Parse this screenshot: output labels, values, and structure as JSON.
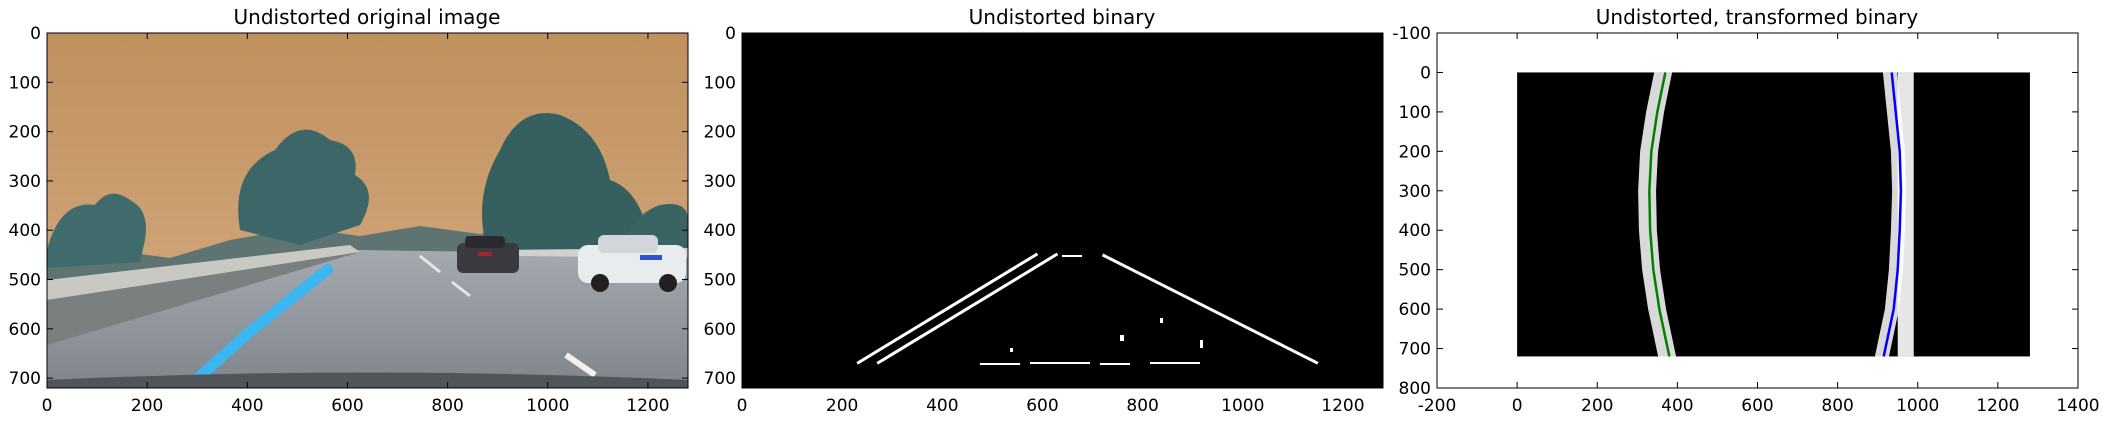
{
  "chart_data": [
    {
      "type": "image",
      "title": "Undistorted original image",
      "xlim": [
        0,
        1280
      ],
      "ylim": [
        720,
        0
      ],
      "xticks": [
        0,
        200,
        400,
        600,
        800,
        1000,
        1200
      ],
      "yticks": [
        0,
        100,
        200,
        300,
        400,
        500,
        600,
        700
      ],
      "content": {
        "sky_color": "#c99a6a",
        "road_color": "#9aa0a6",
        "highlighted_lane_color": "#3ab6f0",
        "highlighted_lane": [
          [
            280,
            720
          ],
          [
            400,
            610
          ],
          [
            560,
            480
          ]
        ]
      }
    },
    {
      "type": "image",
      "title": "Undistorted binary",
      "xlim": [
        0,
        1280
      ],
      "ylim": [
        720,
        0
      ],
      "xticks": [
        0,
        200,
        400,
        600,
        800,
        1000,
        1200
      ],
      "yticks": [
        0,
        100,
        200,
        300,
        400,
        500,
        600,
        700
      ],
      "content": {
        "background_color": "#000000",
        "line_color": "#ffffff",
        "left_lane": [
          [
            230,
            670
          ],
          [
            590,
            448
          ]
        ],
        "right_lane": [
          [
            720,
            450
          ],
          [
            1150,
            670
          ]
        ]
      }
    },
    {
      "type": "image",
      "title": "Undistorted, transformed binary",
      "xlim": [
        -200,
        1400
      ],
      "ylim": [
        800,
        -100
      ],
      "image_extent": [
        0,
        1280,
        720,
        0
      ],
      "xticks": [
        -200,
        0,
        200,
        400,
        600,
        800,
        1000,
        1200,
        1400
      ],
      "yticks": [
        -100,
        0,
        100,
        200,
        300,
        400,
        500,
        600,
        700,
        800
      ],
      "series": [
        {
          "color": "#008000",
          "points": [
            [
              370,
              0
            ],
            [
              350,
              100
            ],
            [
              335,
              200
            ],
            [
              330,
              300
            ],
            [
              332,
              400
            ],
            [
              340,
              500
            ],
            [
              355,
              600
            ],
            [
              380,
              720
            ]
          ]
        },
        {
          "color": "#0000ff",
          "points": [
            [
              935,
              0
            ],
            [
              945,
              100
            ],
            [
              955,
              200
            ],
            [
              958,
              300
            ],
            [
              955,
              400
            ],
            [
              950,
              500
            ],
            [
              940,
              600
            ],
            [
              915,
              720
            ]
          ]
        }
      ]
    }
  ]
}
